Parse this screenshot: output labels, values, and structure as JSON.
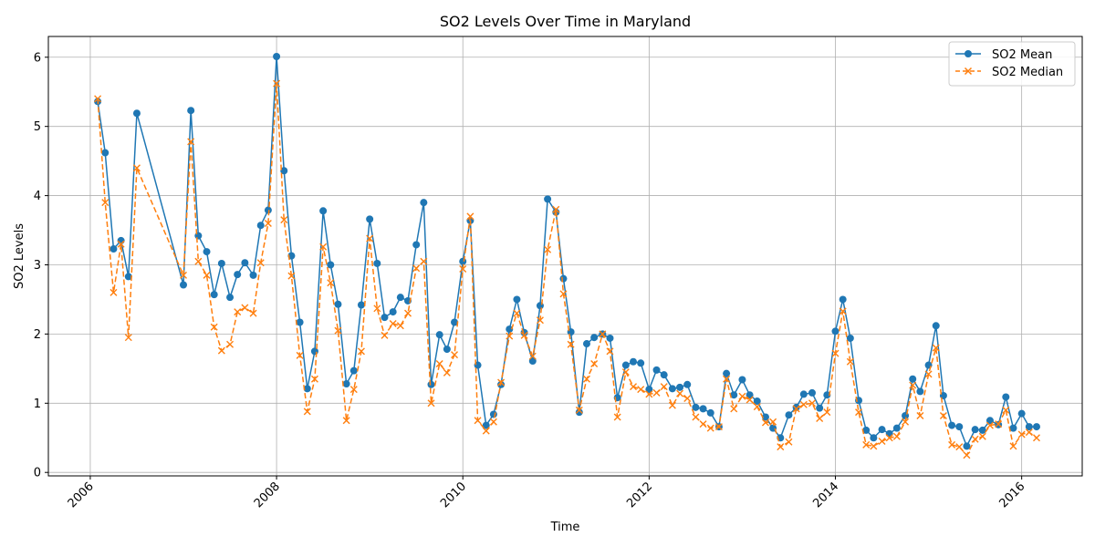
{
  "chart_data": {
    "type": "line",
    "title": "SO2 Levels Over Time in Maryland",
    "xlabel": "Time",
    "ylabel": "SO2 Levels",
    "xlim": [
      2005.55,
      2016.65
    ],
    "ylim": [
      -0.05,
      6.3
    ],
    "x_ticks": [
      2006,
      2008,
      2010,
      2012,
      2014,
      2016
    ],
    "y_ticks": [
      0,
      1,
      2,
      3,
      4,
      5,
      6
    ],
    "grid": true,
    "legend_position": "top-right",
    "colors": {
      "mean": "#1f77b4",
      "median": "#ff7f0e"
    },
    "series": [
      {
        "name": "SO2 Mean",
        "marker": "circle",
        "style": "solid",
        "x": [
          2006.08,
          2006.16,
          2006.25,
          2006.33,
          2006.41,
          2006.5,
          2007.0,
          2007.08,
          2007.16,
          2007.25,
          2007.33,
          2007.41,
          2007.5,
          2007.58,
          2007.66,
          2007.75,
          2007.83,
          2007.91,
          2008.0,
          2008.08,
          2008.16,
          2008.25,
          2008.33,
          2008.41,
          2008.5,
          2008.58,
          2008.66,
          2008.75,
          2008.83,
          2008.91,
          2009.0,
          2009.08,
          2009.16,
          2009.25,
          2009.33,
          2009.41,
          2009.5,
          2009.58,
          2009.66,
          2009.75,
          2009.83,
          2009.91,
          2010.0,
          2010.08,
          2010.16,
          2010.25,
          2010.33,
          2010.41,
          2010.5,
          2010.58,
          2010.66,
          2010.75,
          2010.83,
          2010.91,
          2011.0,
          2011.08,
          2011.16,
          2011.25,
          2011.33,
          2011.41,
          2011.5,
          2011.58,
          2011.66,
          2011.75,
          2011.83,
          2011.91,
          2012.0,
          2012.08,
          2012.16,
          2012.25,
          2012.33,
          2012.41,
          2012.5,
          2012.58,
          2012.66,
          2012.75,
          2012.83,
          2012.91,
          2013.0,
          2013.08,
          2013.16,
          2013.25,
          2013.33,
          2013.41,
          2013.5,
          2013.58,
          2013.66,
          2013.75,
          2013.83,
          2013.91,
          2014.0,
          2014.08,
          2014.16,
          2014.25,
          2014.33,
          2014.41,
          2014.5,
          2014.58,
          2014.66,
          2014.75,
          2014.83,
          2014.91,
          2015.0,
          2015.08,
          2015.16,
          2015.25,
          2015.33,
          2015.41,
          2015.5,
          2015.58,
          2015.66,
          2015.75,
          2015.83,
          2015.91,
          2016.0,
          2016.08,
          2016.16
        ],
        "values": [
          5.36,
          4.62,
          3.23,
          3.35,
          2.83,
          5.19,
          2.71,
          5.23,
          3.42,
          3.19,
          2.57,
          3.02,
          2.53,
          2.86,
          3.03,
          2.85,
          3.57,
          3.79,
          6.01,
          4.36,
          3.13,
          2.17,
          1.21,
          1.75,
          3.78,
          3.0,
          2.43,
          1.28,
          1.47,
          2.42,
          3.66,
          3.02,
          2.24,
          2.32,
          2.53,
          2.48,
          3.29,
          3.9,
          1.27,
          1.99,
          1.78,
          2.17,
          3.05,
          3.64,
          1.55,
          0.68,
          0.84,
          1.27,
          2.07,
          2.5,
          2.02,
          1.61,
          2.41,
          3.95,
          3.76,
          2.8,
          2.03,
          0.87,
          1.86,
          1.95,
          2.0,
          1.94,
          1.08,
          1.55,
          1.6,
          1.58,
          1.2,
          1.48,
          1.41,
          1.21,
          1.23,
          1.27,
          0.94,
          0.92,
          0.86,
          0.66,
          1.43,
          1.12,
          1.34,
          1.12,
          1.03,
          0.8,
          0.64,
          0.5,
          0.83,
          0.94,
          1.13,
          1.15,
          0.93,
          1.12,
          2.04,
          2.5,
          1.94,
          1.04,
          0.61,
          0.5,
          0.62,
          0.56,
          0.64,
          0.82,
          1.35,
          1.17,
          1.55,
          2.12,
          1.11,
          0.68,
          0.66,
          0.38,
          0.62,
          0.61,
          0.75,
          0.69,
          1.09,
          0.64,
          0.85,
          0.66,
          0.66
        ]
      },
      {
        "name": "SO2 Median",
        "marker": "x",
        "style": "dashed",
        "x": [
          2006.08,
          2006.16,
          2006.25,
          2006.33,
          2006.41,
          2006.5,
          2007.0,
          2007.08,
          2007.16,
          2007.25,
          2007.33,
          2007.41,
          2007.5,
          2007.58,
          2007.66,
          2007.75,
          2007.83,
          2007.91,
          2008.0,
          2008.08,
          2008.16,
          2008.25,
          2008.33,
          2008.41,
          2008.5,
          2008.58,
          2008.66,
          2008.75,
          2008.83,
          2008.91,
          2009.0,
          2009.08,
          2009.16,
          2009.25,
          2009.33,
          2009.41,
          2009.5,
          2009.58,
          2009.66,
          2009.75,
          2009.83,
          2009.91,
          2010.0,
          2010.08,
          2010.16,
          2010.25,
          2010.33,
          2010.41,
          2010.5,
          2010.58,
          2010.66,
          2010.75,
          2010.83,
          2010.91,
          2011.0,
          2011.08,
          2011.16,
          2011.25,
          2011.33,
          2011.41,
          2011.5,
          2011.58,
          2011.66,
          2011.75,
          2011.83,
          2011.91,
          2012.0,
          2012.08,
          2012.16,
          2012.25,
          2012.33,
          2012.41,
          2012.5,
          2012.58,
          2012.66,
          2012.75,
          2012.83,
          2012.91,
          2013.0,
          2013.08,
          2013.16,
          2013.25,
          2013.33,
          2013.41,
          2013.5,
          2013.58,
          2013.66,
          2013.75,
          2013.83,
          2013.91,
          2014.0,
          2014.08,
          2014.16,
          2014.25,
          2014.33,
          2014.41,
          2014.5,
          2014.58,
          2014.66,
          2014.75,
          2014.83,
          2014.91,
          2015.0,
          2015.08,
          2015.16,
          2015.25,
          2015.33,
          2015.41,
          2015.5,
          2015.58,
          2015.66,
          2015.75,
          2015.83,
          2015.91,
          2016.0,
          2016.08,
          2016.16
        ],
        "values": [
          5.4,
          3.9,
          2.6,
          3.3,
          1.95,
          4.4,
          2.85,
          4.78,
          3.05,
          2.85,
          2.1,
          1.76,
          1.85,
          2.32,
          2.38,
          2.3,
          3.03,
          3.6,
          5.62,
          3.65,
          2.84,
          1.69,
          0.88,
          1.35,
          3.26,
          2.74,
          2.05,
          0.75,
          1.2,
          1.75,
          3.38,
          2.37,
          1.98,
          2.15,
          2.12,
          2.3,
          2.95,
          3.05,
          1.0,
          1.57,
          1.44,
          1.7,
          2.94,
          3.7,
          0.75,
          0.6,
          0.73,
          1.3,
          1.97,
          2.3,
          1.98,
          1.68,
          2.2,
          3.22,
          3.8,
          2.58,
          1.85,
          0.9,
          1.35,
          1.57,
          2.0,
          1.75,
          0.8,
          1.45,
          1.24,
          1.2,
          1.13,
          1.15,
          1.24,
          0.97,
          1.14,
          1.07,
          0.8,
          0.7,
          0.64,
          0.66,
          1.35,
          0.92,
          1.1,
          1.05,
          0.95,
          0.72,
          0.73,
          0.37,
          0.44,
          0.92,
          0.98,
          1.0,
          0.78,
          0.87,
          1.72,
          2.33,
          1.6,
          0.87,
          0.4,
          0.38,
          0.45,
          0.5,
          0.52,
          0.73,
          1.26,
          0.82,
          1.42,
          1.8,
          0.82,
          0.4,
          0.37,
          0.25,
          0.48,
          0.52,
          0.68,
          0.7,
          0.9,
          0.38,
          0.55,
          0.58,
          0.5
        ]
      }
    ]
  }
}
